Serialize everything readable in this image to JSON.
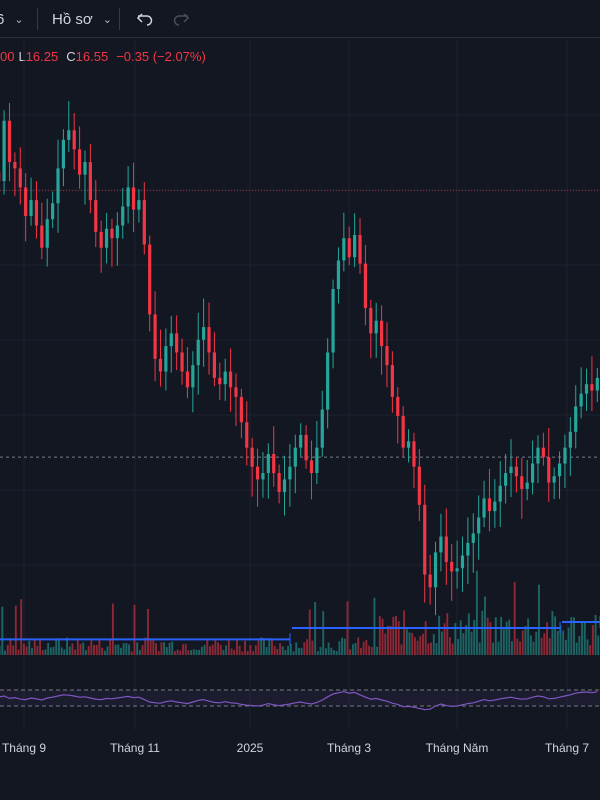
{
  "toolbar": {
    "interval_label": "6",
    "profile_label": "Hồ sơ",
    "undo_icon": "undo-icon",
    "redo_icon": "redo-icon"
  },
  "legend": {
    "open_value": "00",
    "low_key": "L",
    "low_value": "16.25",
    "close_key": "C",
    "close_value": "16.55",
    "change": "−0.35 (−2.07%)"
  },
  "colors": {
    "background": "#131722",
    "up": "#26a69a",
    "down": "#f23645",
    "volume_ma": "#2962ff",
    "rsi": "#7e57c2"
  },
  "chart_data": {
    "type": "candlestick",
    "x_tick_labels": [
      "Tháng 9",
      "Tháng 11",
      "2025",
      "Tháng 3",
      "Tháng Năm",
      "Tháng 7"
    ],
    "price_path": [
      23.0,
      24.9,
      23.6,
      23.4,
      22.8,
      21.9,
      22.4,
      21.6,
      20.9,
      21.8,
      22.3,
      23.4,
      24.3,
      24.6,
      24.0,
      23.2,
      23.6,
      22.4,
      21.4,
      20.9,
      21.5,
      21.2,
      21.6,
      22.2,
      22.8,
      22.1,
      22.4,
      21.0,
      18.8,
      17.4,
      17.0,
      17.8,
      18.2,
      17.6,
      17.0,
      16.5,
      17.2,
      18.0,
      18.4,
      17.6,
      16.8,
      16.6,
      17.0,
      16.5,
      16.2,
      15.4,
      14.6,
      14.0,
      13.6,
      13.8,
      14.4,
      13.8,
      13.2,
      13.6,
      14.0,
      14.6,
      15.0,
      14.2,
      13.8,
      14.6,
      15.8,
      17.6,
      19.6,
      20.5,
      21.2,
      20.6,
      21.3,
      20.4,
      19.0,
      18.2,
      18.6,
      17.8,
      17.2,
      16.2,
      15.6,
      14.6,
      14.8,
      14.0,
      12.8,
      10.6,
      10.2,
      11.3,
      11.8,
      11.0,
      10.7,
      10.8,
      11.2,
      11.6,
      11.9,
      12.4,
      13.0,
      12.6,
      12.9,
      13.4,
      13.8,
      14.0,
      13.7,
      13.3,
      13.5,
      14.1,
      14.6,
      14.3,
      13.5,
      13.7,
      14.1,
      14.6,
      15.1,
      15.9,
      16.3,
      16.6,
      16.4,
      16.8
    ],
    "price_range": [
      9.8,
      26.5
    ],
    "horizontal_levels": [
      22.7,
      14.3
    ],
    "volume_ma_levels": [
      0.26,
      0.45,
      0.45,
      0.55
    ],
    "rsi_band": [
      70,
      30
    ],
    "rsi_values": [
      52,
      55,
      49,
      51,
      47,
      46,
      50,
      48,
      45,
      50,
      52,
      55,
      58,
      57,
      55,
      52,
      53,
      50,
      47,
      46,
      49,
      48,
      50,
      52,
      54,
      51,
      52,
      46,
      40,
      38,
      37,
      41,
      43,
      40,
      38,
      36,
      40,
      44,
      46,
      42,
      39,
      38,
      41,
      38,
      37,
      34,
      32,
      31,
      30,
      32,
      36,
      33,
      31,
      33,
      35,
      38,
      40,
      37,
      35,
      39,
      45,
      53,
      60,
      63,
      66,
      62,
      64,
      58,
      52,
      47,
      49,
      45,
      42,
      37,
      34,
      28,
      29,
      27,
      24,
      21,
      22,
      30,
      35,
      31,
      29,
      30,
      33,
      36,
      38,
      42,
      46,
      43,
      45,
      48,
      50,
      52,
      49,
      47,
      48,
      52,
      55,
      53,
      48,
      49,
      52,
      55,
      58,
      62,
      64,
      65,
      63,
      66
    ],
    "grid": true
  }
}
